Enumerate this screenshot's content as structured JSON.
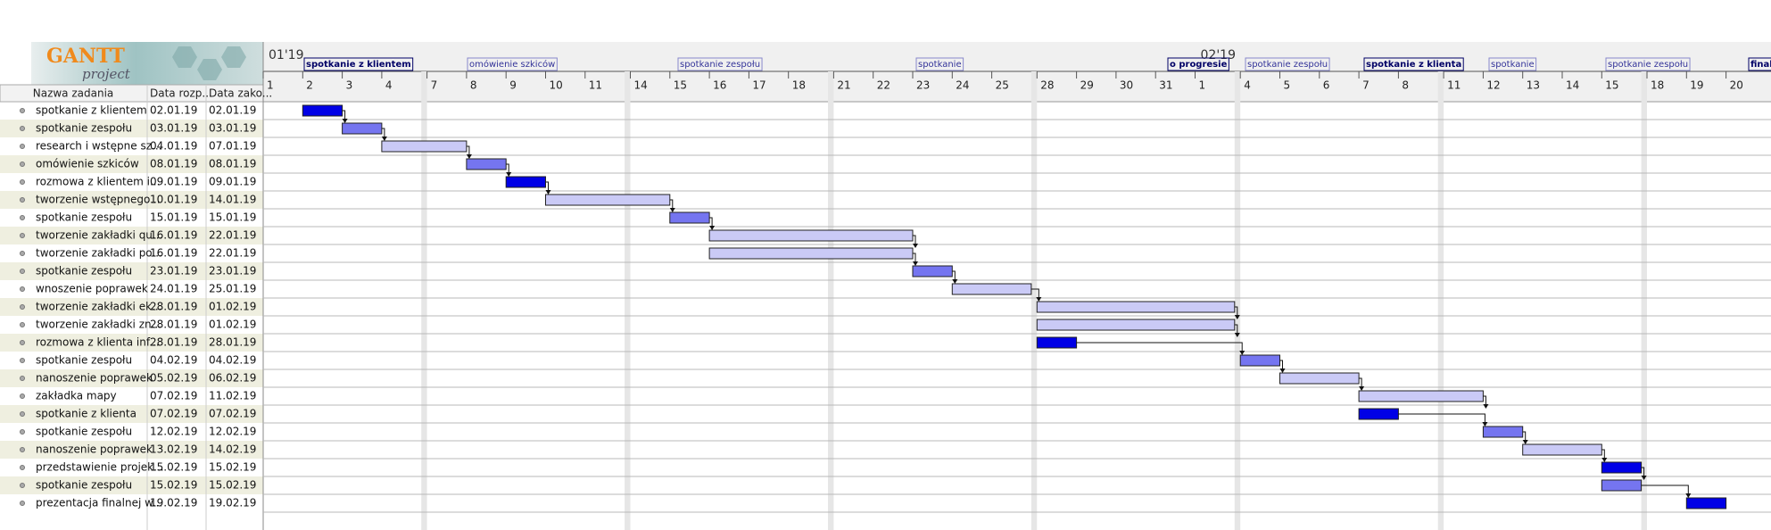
{
  "logo": {
    "title": "GANTT",
    "subtitle": "project"
  },
  "table": {
    "columns": [
      "Nazwa zadania",
      "Data rozp...",
      "Data zako..."
    ],
    "rows": [
      {
        "name": "spotkanie  z klientem",
        "start": "02.01.19",
        "end": "02.01.19",
        "color": "#0000e6"
      },
      {
        "name": "spotkanie zespołu",
        "start": "03.01.19",
        "end": "03.01.19",
        "color": "#7575f0"
      },
      {
        "name": "research i wstępne sz...",
        "start": "04.01.19",
        "end": "07.01.19",
        "color": "#cacaf6"
      },
      {
        "name": "omówienie szkiców",
        "start": "08.01.19",
        "end": "08.01.19",
        "color": "#7575f0"
      },
      {
        "name": "rozmowa z klientem i...",
        "start": "09.01.19",
        "end": "09.01.19",
        "color": "#0000e6"
      },
      {
        "name": "tworzenie wstępnego...",
        "start": "10.01.19",
        "end": "14.01.19",
        "color": "#cacaf6"
      },
      {
        "name": "spotkanie zespołu",
        "start": "15.01.19",
        "end": "15.01.19",
        "color": "#7575f0"
      },
      {
        "name": "tworzenie zakładki qu...",
        "start": "16.01.19",
        "end": "22.01.19",
        "color": "#cacaf6"
      },
      {
        "name": "tworzenie zakładki po...",
        "start": "16.01.19",
        "end": "22.01.19",
        "color": "#cacaf6"
      },
      {
        "name": "spotkanie zespołu",
        "start": "23.01.19",
        "end": "23.01.19",
        "color": "#7575f0"
      },
      {
        "name": "wnoszenie poprawek",
        "start": "24.01.19",
        "end": "25.01.19",
        "color": "#cacaf6"
      },
      {
        "name": "tworzenie zakładki ek...",
        "start": "28.01.19",
        "end": "01.02.19",
        "color": "#cacaf6"
      },
      {
        "name": "tworzenie zakładki zn...",
        "start": "28.01.19",
        "end": "01.02.19",
        "color": "#cacaf6"
      },
      {
        "name": "rozmowa z klienta inf...",
        "start": "28.01.19",
        "end": "28.01.19",
        "color": "#0000e6"
      },
      {
        "name": "spotkanie zespołu",
        "start": "04.02.19",
        "end": "04.02.19",
        "color": "#7575f0"
      },
      {
        "name": "nanoszenie poprawek",
        "start": "05.02.19",
        "end": "06.02.19",
        "color": "#cacaf6"
      },
      {
        "name": "zakładka mapy",
        "start": "07.02.19",
        "end": "11.02.19",
        "color": "#cacaf6"
      },
      {
        "name": "spotkanie z klienta",
        "start": "07.02.19",
        "end": "07.02.19",
        "color": "#0000e6"
      },
      {
        "name": "spotkanie zespołu",
        "start": "12.02.19",
        "end": "12.02.19",
        "color": "#7575f0"
      },
      {
        "name": "nanoszenie poprawek",
        "start": "13.02.19",
        "end": "14.02.19",
        "color": "#cacaf6"
      },
      {
        "name": "przedstawienie projek...",
        "start": "15.02.19",
        "end": "15.02.19",
        "color": "#0000e6"
      },
      {
        "name": "spotkanie zespołu",
        "start": "15.02.19",
        "end": "15.02.19",
        "color": "#7575f0"
      },
      {
        "name": "prezentacja finalnej w...",
        "start": "19.02.19",
        "end": "19.02.19",
        "color": "#0000e6"
      }
    ]
  },
  "timeline": {
    "months": [
      "01'19",
      "02'19"
    ],
    "days": [
      "1",
      "2",
      "3",
      "4",
      "7",
      "8",
      "9",
      "10",
      "11",
      "14",
      "15",
      "16",
      "17",
      "18",
      "21",
      "22",
      "23",
      "24",
      "25",
      "28",
      "29",
      "30",
      "31",
      "1",
      "4",
      "5",
      "6",
      "7",
      "8",
      "11",
      "12",
      "13",
      "14",
      "15",
      "18",
      "19",
      "20"
    ],
    "markers": [
      {
        "text": "spotkanie  z klientem",
        "emphasis": true
      },
      {
        "text": "omówienie szkiców",
        "emphasis": false
      },
      {
        "text": "spotkanie zespołu",
        "emphasis": false
      },
      {
        "text": "spotkanie",
        "emphasis": false
      },
      {
        "text": "o progresie",
        "emphasis": true
      },
      {
        "text": "spotkanie zespołu",
        "emphasis": false
      },
      {
        "text": "spotkanie z klienta",
        "emphasis": true
      },
      {
        "text": "spotkanie",
        "emphasis": false
      },
      {
        "text": "spotkanie zespołu",
        "emphasis": false
      },
      {
        "text": "finaln",
        "emphasis": true
      }
    ]
  }
}
